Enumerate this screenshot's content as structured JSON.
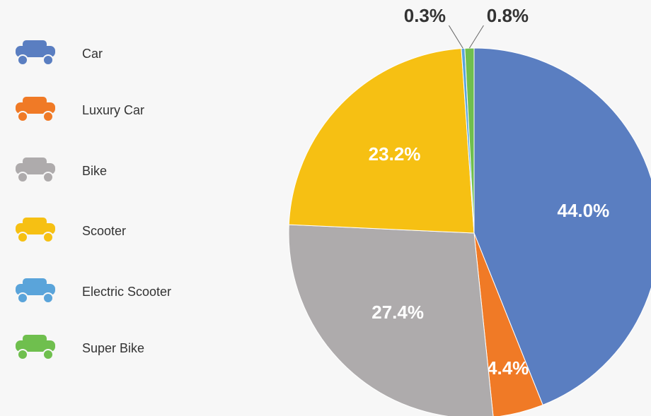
{
  "chart_data": {
    "type": "pie",
    "categories": [
      "Car",
      "Luxury Car",
      "Bike",
      "Scooter",
      "Electric Scooter",
      "Super Bike"
    ],
    "values": [
      44.0,
      4.4,
      27.4,
      23.2,
      0.3,
      0.8
    ],
    "value_labels": [
      "44.0%",
      "4.4%",
      "27.4%",
      "23.2%",
      "0.3%",
      "0.8%"
    ],
    "colors": [
      "#5a7ec1",
      "#f07a26",
      "#aeabac",
      "#f6c013",
      "#5aa4da",
      "#6fbf4e"
    ],
    "legend": "left"
  }
}
